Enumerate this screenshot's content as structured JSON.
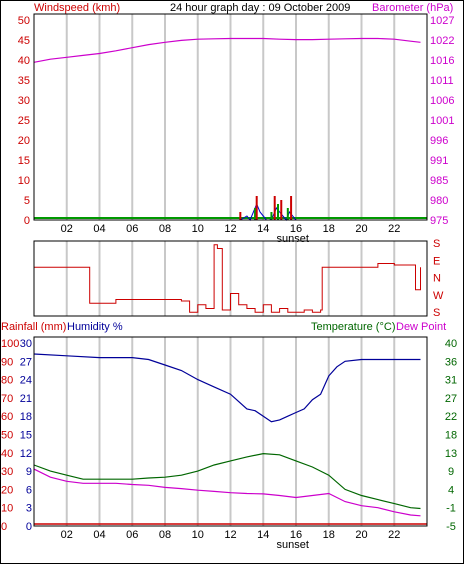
{
  "header": {
    "left_label": "Windspeed (kmh)",
    "title": "24 hour graph day : 09 October 2009",
    "right_label": "Barometer (hPa)"
  },
  "colors": {
    "wind": "#cc0000",
    "baro": "#cc00cc",
    "grid": "#c8c8c8",
    "humidity": "#000099",
    "temp": "#006600",
    "dew": "#cc00cc",
    "rain": "#cc0000"
  },
  "x_ticks": [
    "02",
    "04",
    "06",
    "08",
    "10",
    "12",
    "14",
    "16",
    "18",
    "20",
    "22"
  ],
  "sunset_label": "sunset",
  "chart_data": [
    {
      "type": "line",
      "panel": "wind-barometer",
      "ylim_left": [
        0,
        50
      ],
      "ylim_right": [
        975,
        1027
      ],
      "yticks_left": [
        "0",
        "5",
        "10",
        "15",
        "20",
        "25",
        "30",
        "35",
        "40",
        "45",
        "50"
      ],
      "yticks_right": [
        "975",
        "980",
        "985",
        "991",
        "996",
        "1001",
        "1006",
        "1011",
        "1016",
        "1022",
        "1027"
      ],
      "x_range": [
        0,
        24
      ],
      "series": [
        {
          "name": "Barometer (hPa)",
          "axis": "right",
          "x": [
            0,
            1,
            2,
            3,
            4,
            5,
            6,
            7,
            8,
            9,
            10,
            11,
            12,
            13,
            14,
            15,
            16,
            17,
            18,
            19,
            20,
            21,
            22,
            23,
            23.6
          ],
          "values": [
            1016.0,
            1016.8,
            1017.3,
            1017.8,
            1018.3,
            1019.0,
            1019.8,
            1020.6,
            1021.2,
            1021.7,
            1022.0,
            1022.1,
            1022.2,
            1022.2,
            1022.2,
            1022.0,
            1021.9,
            1021.9,
            1022.0,
            1022.1,
            1022.2,
            1022.2,
            1022.0,
            1021.5,
            1021.2
          ]
        },
        {
          "name": "Wind speed",
          "axis": "left",
          "x": [
            12.6,
            12.8,
            13.0,
            13.2,
            13.4,
            13.6,
            13.8,
            14.0,
            14.2,
            14.4,
            14.6,
            14.8,
            15.0,
            15.2,
            15.4,
            15.6,
            15.8,
            16.0
          ],
          "values": [
            0,
            0.5,
            1,
            0,
            2,
            4,
            2,
            1,
            0,
            0,
            1,
            3,
            2,
            1,
            0,
            2,
            1,
            0
          ]
        },
        {
          "name": "Wind gust",
          "axis": "left",
          "x": [
            12.6,
            13.5,
            13.6,
            14.5,
            14.7,
            14.9,
            15.1,
            15.5,
            15.7
          ],
          "values": [
            2,
            3,
            6,
            2,
            6,
            4,
            5,
            3,
            6
          ]
        }
      ]
    },
    {
      "type": "line",
      "panel": "wind-direction",
      "y_categories": [
        "S",
        "E",
        "N",
        "W",
        "S"
      ],
      "x_range": [
        0,
        24
      ],
      "series": [
        {
          "name": "Direction",
          "x": [
            0,
            3.3,
            3.4,
            5,
            5.5,
            6,
            8,
            9,
            9.5,
            10,
            10.5,
            11,
            11.2,
            11.5,
            12,
            12.5,
            13,
            13.5,
            14,
            14.5,
            15,
            15.5,
            16,
            16.5,
            17,
            17.5,
            17.6,
            18,
            19,
            20,
            21,
            22,
            23,
            23.3,
            23.6
          ],
          "values": [
            0.65,
            0.65,
            0.17,
            0.22,
            0.22,
            0.22,
            0.22,
            0.2,
            0.05,
            0.15,
            0.1,
            0.95,
            0.9,
            0.08,
            0.3,
            0.15,
            0.1,
            0.05,
            0.15,
            0.05,
            0.1,
            0.05,
            0.05,
            0.08,
            0.05,
            0.08,
            0.65,
            0.65,
            0.65,
            0.65,
            0.7,
            0.68,
            0.68,
            0.35,
            0.65
          ]
        }
      ]
    },
    {
      "type": "line",
      "panel": "temperature-humidity-rain",
      "ylim_temp": [
        -5,
        40
      ],
      "yticks_rain_left": [
        "0",
        "10",
        "20",
        "30",
        "40",
        "50",
        "60",
        "70",
        "80",
        "90",
        "100"
      ],
      "yticks_humidity": [
        "0",
        "3",
        "6",
        "9",
        "12",
        "15",
        "18",
        "21",
        "24",
        "27",
        "30"
      ],
      "yticks_temp": [
        "-5",
        "-1",
        "4",
        "9",
        "13",
        "18",
        "22",
        "27",
        "31",
        "36",
        "40"
      ],
      "legend": {
        "rain": "Rainfall (mm)",
        "humidity": "Humidity %",
        "temp": "Temperature (°C)",
        "dew": "Dew Point"
      },
      "x_range": [
        0,
        24
      ],
      "series": [
        {
          "name": "Humidity %",
          "axis": "rain_left",
          "x": [
            0,
            2,
            4,
            6,
            7,
            8,
            9,
            10,
            11,
            12,
            12.5,
            13,
            13.5,
            14,
            14.5,
            15,
            15.5,
            16,
            16.5,
            17,
            17.5,
            18,
            18.5,
            19,
            20,
            21,
            22,
            23,
            23.6
          ],
          "values": [
            94,
            93,
            92,
            92,
            91,
            88,
            85,
            80,
            76,
            72,
            68,
            64,
            63,
            60,
            57,
            58,
            60,
            62,
            64,
            69,
            72,
            82,
            87,
            90,
            91,
            91,
            91,
            91,
            91
          ]
        },
        {
          "name": "Temperature (°C)",
          "axis": "temp",
          "x": [
            0,
            1,
            2,
            3,
            4,
            5,
            6,
            7,
            8,
            9,
            10,
            11,
            12,
            13,
            14,
            15,
            16,
            17,
            18,
            19,
            20,
            21,
            22,
            23,
            23.6
          ],
          "values": [
            10,
            8.5,
            7.5,
            6.5,
            6.5,
            6.5,
            6.5,
            6.8,
            7,
            7.5,
            8.5,
            10,
            11,
            12,
            12.8,
            12.5,
            11,
            9.5,
            7.5,
            4,
            2.5,
            1.5,
            0.5,
            -0.5,
            -0.7
          ]
        },
        {
          "name": "Dew Point",
          "axis": "temp",
          "x": [
            0,
            1,
            2,
            3,
            4,
            5,
            6,
            7,
            8,
            9,
            10,
            11,
            12,
            13,
            14,
            15,
            16,
            17,
            18,
            19,
            20,
            21,
            22,
            23,
            23.6
          ],
          "values": [
            9,
            7,
            6,
            5.5,
            5.5,
            5.5,
            5.2,
            5,
            4.5,
            4.2,
            3.8,
            3.5,
            3.2,
            3,
            2.9,
            2.5,
            2,
            2.5,
            3,
            1,
            0,
            -0.5,
            -1.5,
            -2.3,
            -2.5
          ]
        },
        {
          "name": "Rainfall (mm)",
          "axis": "rain_left",
          "x": [
            0,
            24
          ],
          "values": [
            0,
            0
          ]
        }
      ]
    }
  ]
}
